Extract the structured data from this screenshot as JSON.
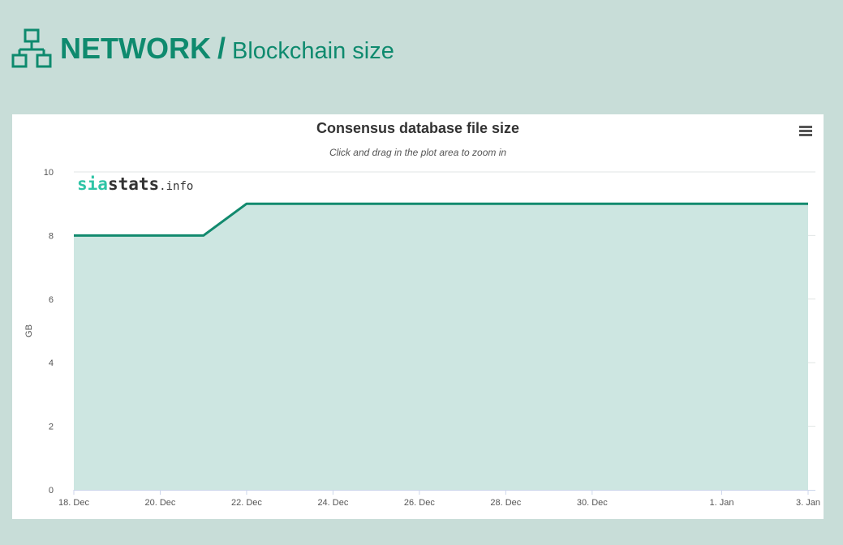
{
  "header": {
    "section": "NETWORK",
    "separator": "/",
    "page": "Blockchain size",
    "icon": "network-icon",
    "accent_color": "#0e8a6e"
  },
  "chart_menu": {
    "icon": "hamburger-menu-icon"
  },
  "watermark": {
    "part1": "sia",
    "part2": "stats",
    "part3": ".info"
  },
  "chart_data": {
    "type": "area",
    "title": "Consensus database file size",
    "subtitle": "Click and drag in the plot area to zoom in",
    "xlabel": "",
    "ylabel": "GB",
    "ylim": [
      0,
      10
    ],
    "yticks": [
      0,
      2,
      4,
      6,
      8,
      10
    ],
    "x_ticks": [
      "18. Dec",
      "20. Dec",
      "22. Dec",
      "24. Dec",
      "26. Dec",
      "28. Dec",
      "30. Dec",
      "1. Jan",
      "3. Jan"
    ],
    "x_tick_dates": [
      "12-18",
      "12-20",
      "12-22",
      "12-24",
      "12-26",
      "12-28",
      "12-30",
      "01-01",
      "01-03"
    ],
    "series": [
      {
        "name": "",
        "x": [
          "12-18",
          "12-19",
          "12-20",
          "12-21",
          "12-22",
          "12-23",
          "12-24",
          "12-25",
          "12-26",
          "12-27",
          "12-28",
          "12-29",
          "12-30",
          "12-31",
          "01-01",
          "01-02",
          "01-03"
        ],
        "y": [
          8,
          8,
          8,
          8,
          9,
          9,
          9,
          9,
          9,
          9,
          9,
          9,
          9,
          9,
          9,
          9,
          9
        ]
      }
    ],
    "line_color": "#128a6e",
    "fill_color": "#cde6e1",
    "grid": true
  }
}
